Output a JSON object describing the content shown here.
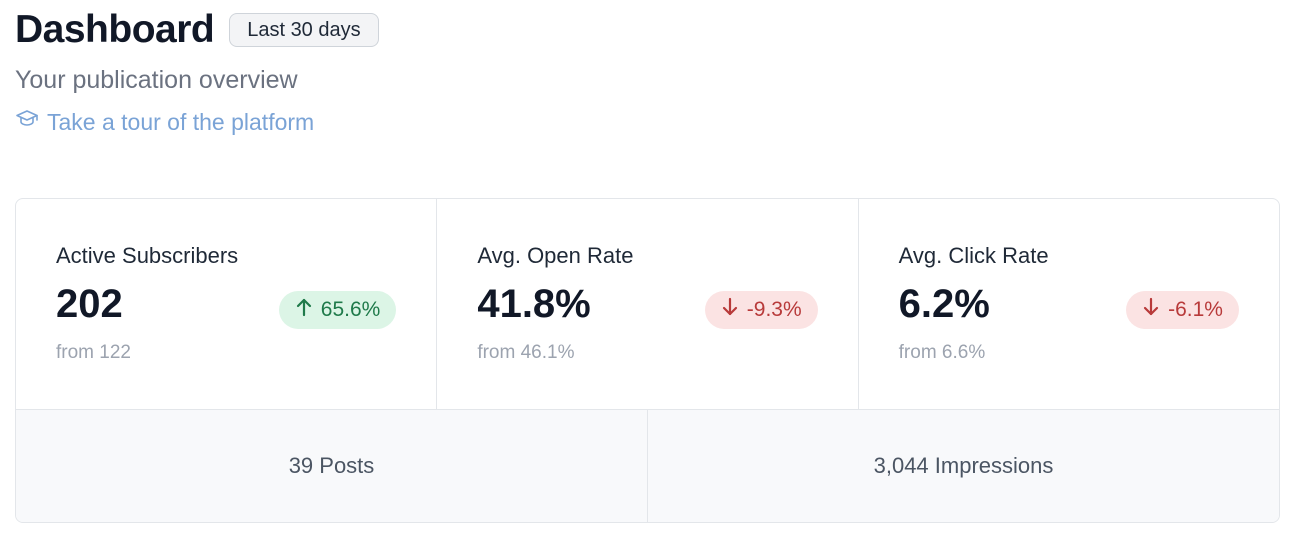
{
  "header": {
    "title": "Dashboard",
    "range_label": "Last 30 days",
    "subtitle": "Your publication overview",
    "tour_link": "Take a tour of the platform",
    "tour_icon": "graduation-cap-icon"
  },
  "stats": [
    {
      "label": "Active Subscribers",
      "value": "202",
      "delta": "65.6%",
      "direction": "up",
      "from": "from 122"
    },
    {
      "label": "Avg. Open Rate",
      "value": "41.8%",
      "delta": "-9.3%",
      "direction": "down",
      "from": "from 46.1%"
    },
    {
      "label": "Avg. Click Rate",
      "value": "6.2%",
      "delta": "-6.1%",
      "direction": "down",
      "from": "from 6.6%"
    }
  ],
  "totals": {
    "posts": "39 Posts",
    "impressions": "3,044 Impressions"
  },
  "colors": {
    "positive": "#1f7a4a",
    "positive_bg": "#dcf5e6",
    "negative": "#b83a3a",
    "negative_bg": "#fbe3e3",
    "link": "#7aa3d6"
  }
}
